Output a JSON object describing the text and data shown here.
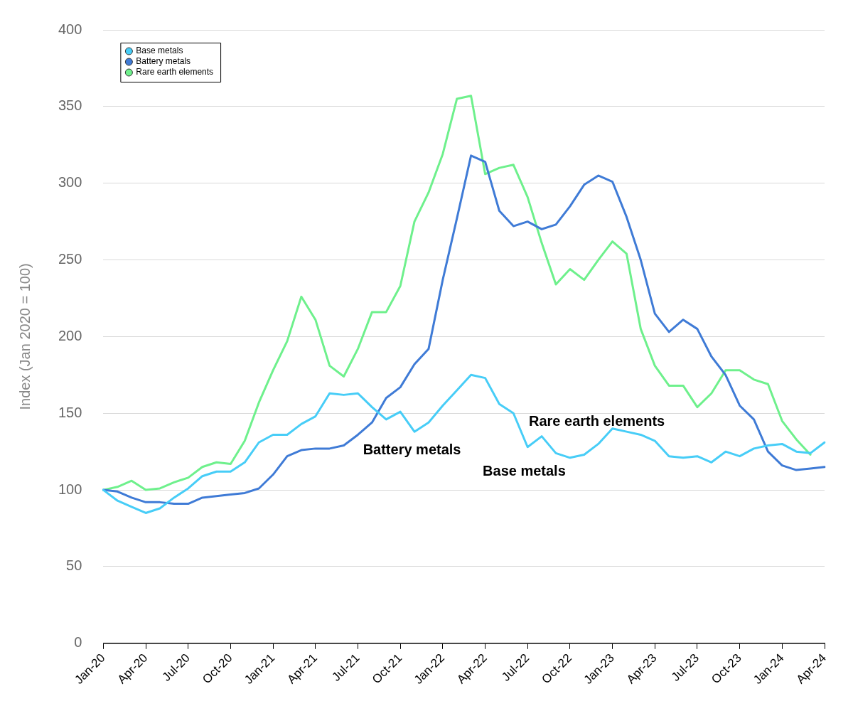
{
  "chart_data": {
    "type": "line",
    "ylabel": "Index (Jan 2020 = 100)",
    "categories": [
      "Jan-20",
      null,
      null,
      "Apr-20",
      null,
      null,
      "Jul-20",
      null,
      null,
      "Oct-20",
      null,
      null,
      "Jan-21",
      null,
      null,
      "Apr-21",
      null,
      null,
      "Jul-21",
      null,
      null,
      "Oct-21",
      null,
      null,
      "Jan-22",
      null,
      null,
      "Apr-22",
      null,
      null,
      "Jul-22",
      null,
      null,
      "Oct-22",
      null,
      null,
      "Jan-23",
      null,
      null,
      "Apr-23",
      null,
      null,
      "Jul-23",
      null,
      null,
      "Oct-23",
      null,
      null,
      "Jan-24",
      null,
      null,
      "Apr-24"
    ],
    "series": [
      {
        "name": "Base metals",
        "color": "#47cdf7",
        "values": [
          100,
          93,
          89,
          85,
          88,
          95,
          101,
          109,
          112,
          112,
          118,
          131,
          136,
          136,
          143,
          148,
          163,
          162,
          163,
          154,
          146,
          151,
          138,
          144,
          155,
          165,
          175,
          173,
          156,
          150,
          128,
          135,
          124,
          121,
          123,
          130,
          140,
          138,
          136,
          132,
          122,
          121,
          122,
          118,
          125,
          122,
          127,
          129,
          130,
          125,
          124,
          131
        ]
      },
      {
        "name": "Battery metals",
        "color": "#3f7bd6",
        "values": [
          100,
          99,
          95,
          92,
          92,
          91,
          91,
          95,
          96,
          97,
          98,
          101,
          110,
          122,
          126,
          127,
          127,
          129,
          136,
          144,
          160,
          167,
          182,
          192,
          237,
          277,
          318,
          314,
          282,
          272,
          275,
          270,
          273,
          285,
          299,
          305,
          301,
          278,
          250,
          215,
          203,
          211,
          205,
          187,
          175,
          155,
          146,
          125,
          116,
          113,
          114,
          115
        ]
      },
      {
        "name": "Rare earth elements",
        "color": "#6ef08c",
        "values": [
          100,
          102,
          106,
          100,
          101,
          105,
          108,
          115,
          118,
          117,
          132,
          157,
          178,
          197,
          226,
          211,
          181,
          174,
          192,
          216,
          216,
          233,
          275,
          294,
          319,
          355,
          357,
          306,
          310,
          312,
          291,
          261,
          234,
          244,
          237,
          250,
          262,
          254,
          205,
          181,
          168,
          168,
          154,
          163,
          178,
          178,
          172,
          169,
          145,
          133,
          123,
          null
        ]
      }
    ],
    "ylim": [
      0,
      400
    ],
    "yticks": [
      0,
      50,
      100,
      150,
      200,
      250,
      300,
      350,
      400
    ],
    "grid": "y",
    "legend": "top left",
    "marker": "none",
    "line_style": "solid",
    "annotations": [
      "Rare earth elements",
      "Battery metals",
      "Base metals"
    ]
  }
}
